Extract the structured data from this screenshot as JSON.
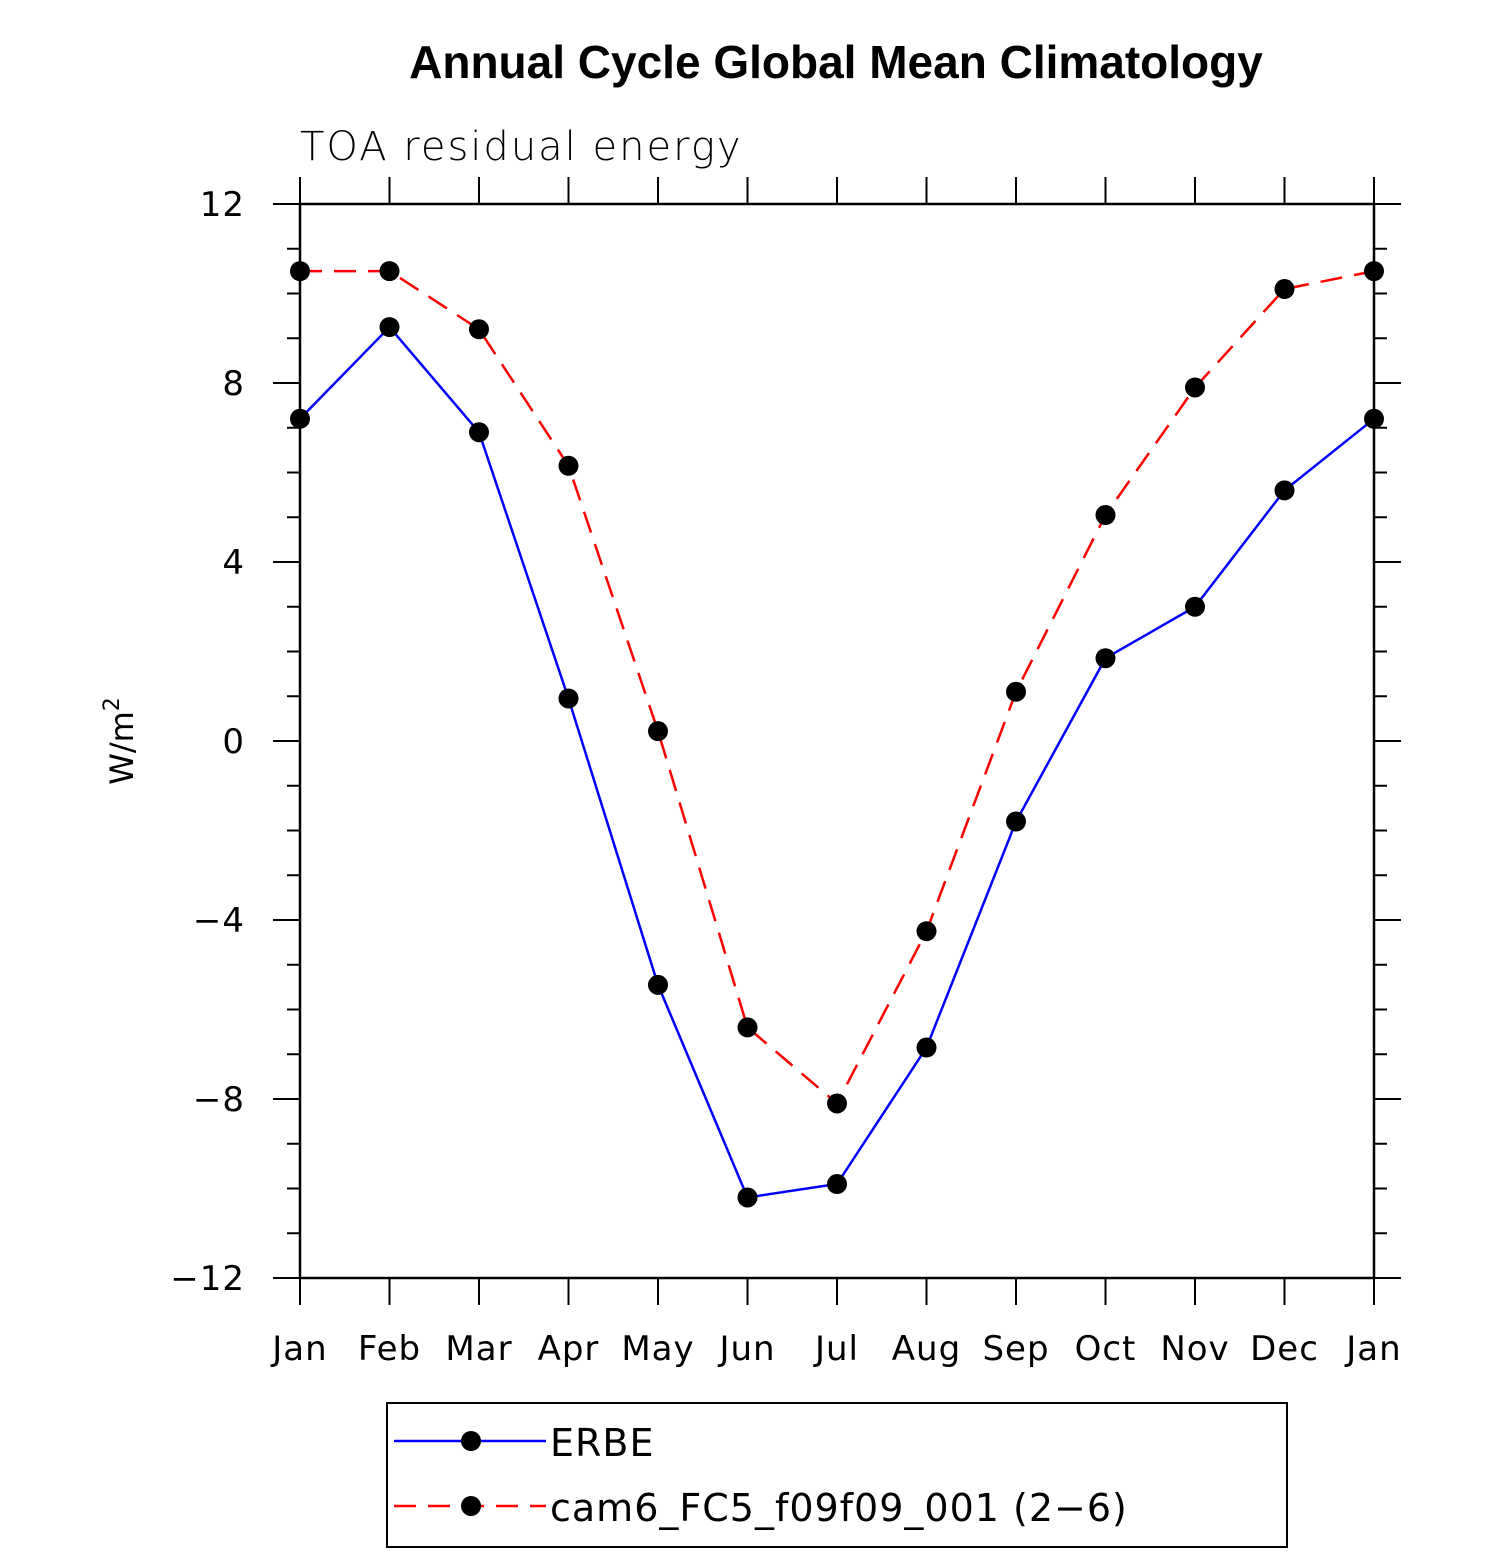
{
  "chart_data": {
    "type": "line",
    "title": "Annual Cycle Global Mean Climatology",
    "subtitle": "TOA residual energy",
    "xlabel": "",
    "ylabel_base": "W/m",
    "ylabel_sup": "2",
    "categories": [
      "Jan",
      "Feb",
      "Mar",
      "Apr",
      "May",
      "Jun",
      "Jul",
      "Aug",
      "Sep",
      "Oct",
      "Nov",
      "Dec",
      "Jan"
    ],
    "ylim": [
      -12,
      12
    ],
    "yticks": [
      -12,
      -8,
      -4,
      0,
      4,
      8,
      12
    ],
    "ytick_labels": [
      "−12",
      "−8",
      "−4",
      "0",
      "4",
      "8",
      "12"
    ],
    "series": [
      {
        "name": "ERBE",
        "color": "#0000ff",
        "style": "solid",
        "marker": "circle",
        "values": [
          7.2,
          9.25,
          6.9,
          0.95,
          -5.45,
          -10.2,
          -9.9,
          -6.85,
          -1.8,
          1.85,
          3.0,
          5.6,
          7.2
        ]
      },
      {
        "name": "cam6_FC5_f09f09_001 (2−6)",
        "color": "#ff0000",
        "style": "dashed",
        "marker": "circle",
        "values": [
          10.5,
          10.5,
          9.2,
          6.15,
          0.22,
          -6.4,
          -8.1,
          -4.25,
          1.1,
          5.05,
          7.9,
          10.1,
          10.5
        ]
      }
    ],
    "grid": false,
    "legend_position": "bottom"
  }
}
